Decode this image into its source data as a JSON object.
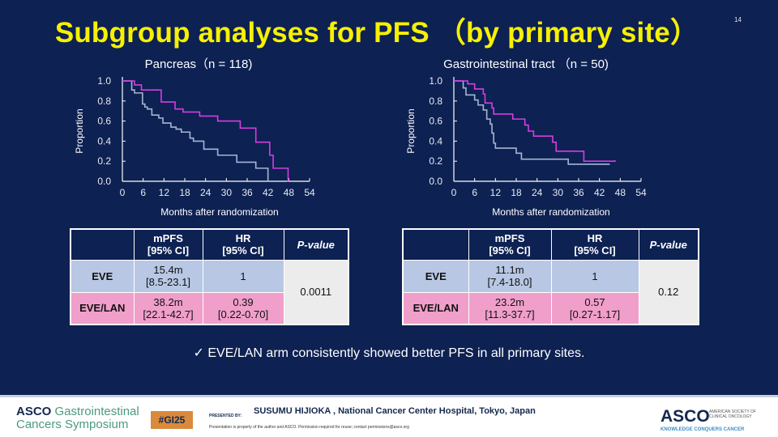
{
  "title": "Subgroup analyses for PFS （by primary site）",
  "slide_number": "14",
  "colors": {
    "eve": "#a7b4d4",
    "eve_lan": "#d63de0",
    "background": "#0d2152",
    "title": "#f7f000"
  },
  "chart_data": [
    {
      "type": "line",
      "title": "Pancreas（n = 118)",
      "xlabel": "Months after randomization",
      "ylabel": "Proportion",
      "xticks": [
        "0",
        "6",
        "12",
        "18",
        "24",
        "30",
        "36",
        "42",
        "48",
        "54"
      ],
      "yticks": [
        "0.0",
        "0.2",
        "0.4",
        "0.6",
        "0.8",
        "1.0"
      ],
      "xlim": [
        0,
        54
      ],
      "ylim": [
        0,
        1
      ],
      "series": [
        {
          "name": "EVE",
          "color": "#a7b4d4",
          "steps": [
            [
              0,
              1
            ],
            [
              2.7,
              0.91
            ],
            [
              3.5,
              0.88
            ],
            [
              5.8,
              0.77
            ],
            [
              6.5,
              0.74
            ],
            [
              7.2,
              0.72
            ],
            [
              8.5,
              0.66
            ],
            [
              10.5,
              0.63
            ],
            [
              11.7,
              0.58
            ],
            [
              14,
              0.54
            ],
            [
              15.5,
              0.52
            ],
            [
              17,
              0.49
            ],
            [
              19.5,
              0.43
            ],
            [
              20.5,
              0.4
            ],
            [
              23.5,
              0.32
            ],
            [
              27.5,
              0.26
            ],
            [
              33,
              0.19
            ],
            [
              38.5,
              0.13
            ],
            [
              42,
              0
            ],
            [
              42.1,
              0
            ]
          ]
        },
        {
          "name": "EVE/LAN",
          "color": "#d63de0",
          "steps": [
            [
              0,
              1
            ],
            [
              3.5,
              0.96
            ],
            [
              5.5,
              0.91
            ],
            [
              11.2,
              0.79
            ],
            [
              15.2,
              0.72
            ],
            [
              17.5,
              0.69
            ],
            [
              22.3,
              0.65
            ],
            [
              27.5,
              0.6
            ],
            [
              34,
              0.53
            ],
            [
              38.5,
              0.39
            ],
            [
              42.5,
              0.26
            ],
            [
              43.5,
              0.13
            ],
            [
              47.8,
              0
            ],
            [
              47.9,
              0
            ]
          ]
        }
      ]
    },
    {
      "type": "line",
      "title": "Gastrointestinal tract （n = 50)",
      "xlabel": "Months after randomization",
      "ylabel": "Proportion",
      "xticks": [
        "0",
        "6",
        "12",
        "18",
        "24",
        "30",
        "36",
        "42",
        "48",
        "54"
      ],
      "yticks": [
        "0.0",
        "0.2",
        "0.4",
        "0.6",
        "0.8",
        "1.0"
      ],
      "xlim": [
        0,
        54
      ],
      "ylim": [
        0,
        1
      ],
      "series": [
        {
          "name": "EVE",
          "color": "#a7b4d4",
          "steps": [
            [
              0,
              1
            ],
            [
              2.7,
              0.93
            ],
            [
              3.5,
              0.86
            ],
            [
              6,
              0.81
            ],
            [
              7,
              0.76
            ],
            [
              8.5,
              0.71
            ],
            [
              9.5,
              0.62
            ],
            [
              10.5,
              0.57
            ],
            [
              11,
              0.48
            ],
            [
              11.5,
              0.38
            ],
            [
              12,
              0.33
            ],
            [
              18,
              0.28
            ],
            [
              19.5,
              0.22
            ],
            [
              33,
              0.17
            ],
            [
              45,
              0.17
            ]
          ]
        },
        {
          "name": "EVE/LAN",
          "color": "#d63de0",
          "steps": [
            [
              0,
              1
            ],
            [
              4,
              0.97
            ],
            [
              6,
              0.92
            ],
            [
              8.5,
              0.87
            ],
            [
              9,
              0.78
            ],
            [
              11,
              0.73
            ],
            [
              11.5,
              0.67
            ],
            [
              17,
              0.62
            ],
            [
              20.5,
              0.56
            ],
            [
              21.5,
              0.5
            ],
            [
              23,
              0.45
            ],
            [
              28.5,
              0.39
            ],
            [
              29.5,
              0.3
            ],
            [
              37.5,
              0.2
            ],
            [
              46.5,
              0.21
            ]
          ]
        }
      ]
    }
  ],
  "tables": [
    {
      "headers": [
        "mPFS\n[95% CI]",
        "HR\n[95% CI]",
        "P-value"
      ],
      "header_mpfs_1": "mPFS",
      "header_mpfs_2": "[95% CI]",
      "header_hr_1": "HR",
      "header_hr_2": "[95% CI]",
      "header_p": "P-value",
      "eve": {
        "label": "EVE",
        "mpfs": "15.4m",
        "mpfs_ci": "[8.5-23.1]",
        "hr": "1"
      },
      "eve_lan": {
        "label": "EVE/LAN",
        "mpfs": "38.2m",
        "mpfs_ci": "[22.1-42.7]",
        "hr": "0.39",
        "hr_ci": "[0.22-0.70]"
      },
      "p": "0.0011"
    },
    {
      "header_mpfs_1": "mPFS",
      "header_mpfs_2": "[95% CI]",
      "header_hr_1": "HR",
      "header_hr_2": "[95% CI]",
      "header_p": "P-value",
      "eve": {
        "label": "EVE",
        "mpfs": "11.1m",
        "mpfs_ci": "[7.4-18.0]",
        "hr": "1"
      },
      "eve_lan": {
        "label": "EVE/LAN",
        "mpfs": "23.2m",
        "mpfs_ci": "[11.3-37.7]",
        "hr": "0.57",
        "hr_ci": "[0.27-1.17]"
      },
      "p": "0.12"
    }
  ],
  "conclusion": "✓  EVE/LAN arm consistently showed better PFS in all primary sites.",
  "footer": {
    "asco_gi_1": "ASCO",
    "asco_gi_2": "Gastrointestinal",
    "asco_gi_3": "Cancers Symposium",
    "hashtag": "#GI25",
    "presented_by": "PRESENTED BY:",
    "presenter": "SUSUMU HIJIOKA , National Cancer Center Hospital, Tokyo, Japan",
    "disclaimer": "Presentation is property of the author and ASCO. Permission required for reuse; contact permissions@asco.org",
    "asco": "ASCO",
    "asco_sub": "AMERICAN SOCIETY OF CLINICAL ONCOLOGY",
    "asco_tagline": "KNOWLEDGE CONQUERS CANCER"
  }
}
